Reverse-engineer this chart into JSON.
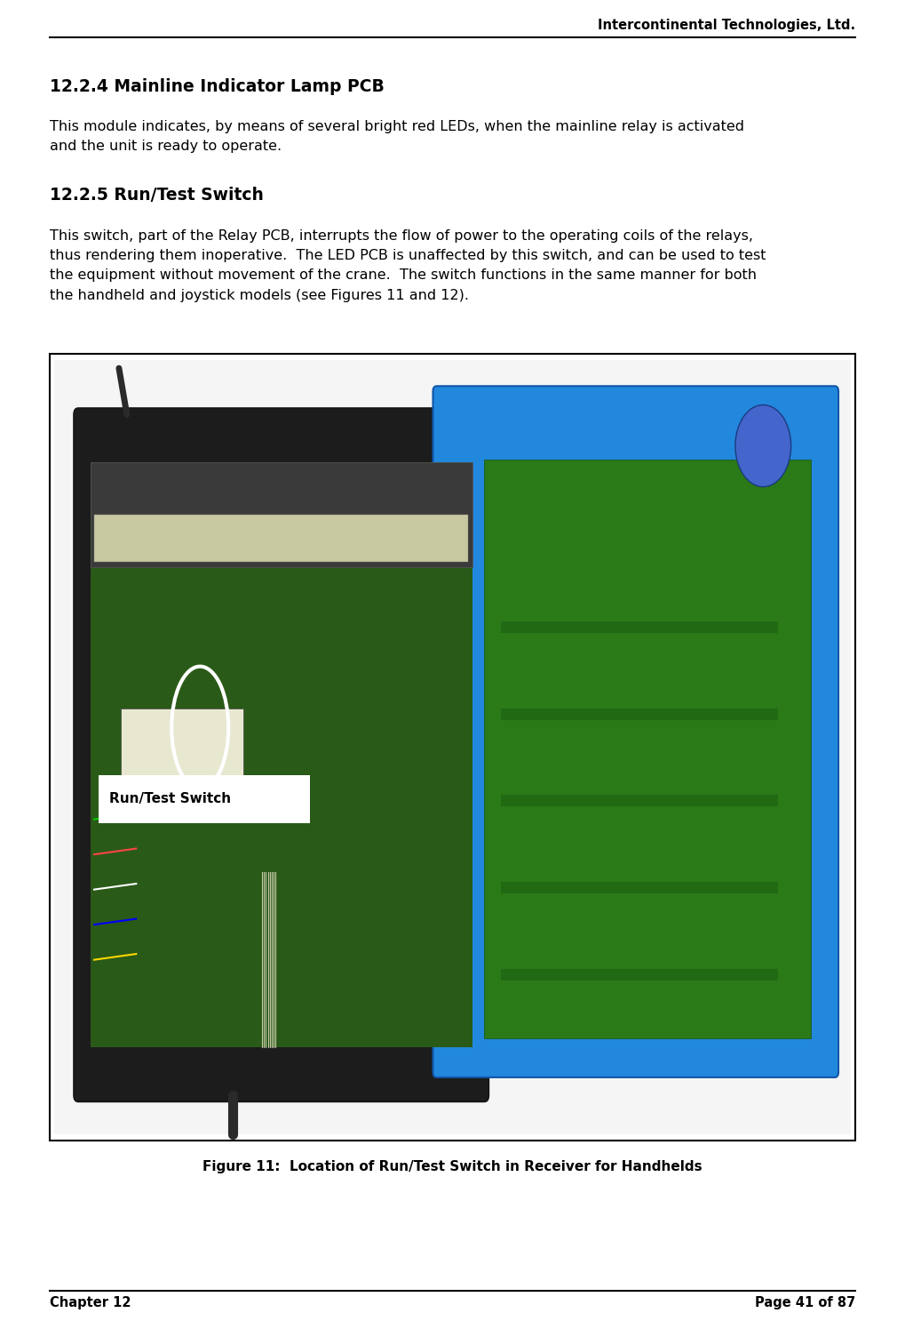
{
  "header_company": "Intercontinental Technologies, Ltd.",
  "footer_left": "Chapter 12",
  "footer_right": "Page 41 of 87",
  "section1_title": "12.2.4 Mainline Indicator Lamp PCB",
  "section1_body": "This module indicates, by means of several bright red LEDs, when the mainline relay is activated\nand the unit is ready to operate.",
  "section2_title": "12.2.5 Run/Test Switch",
  "section2_body": "This switch, part of the Relay PCB, interrupts the flow of power to the operating coils of the relays,\nthus rendering them inoperative.  The LED PCB is unaffected by this switch, and can be used to test\nthe equipment without movement of the crane.  The switch functions in the same manner for both\nthe handheld and joystick models (see Figures 11 and 12).",
  "figure_caption": "Figure 11:  Location of Run/Test Switch in Receiver for Handhelds",
  "bg_color": "#ffffff",
  "text_color": "#000000",
  "label_text": "Run/Test Switch"
}
